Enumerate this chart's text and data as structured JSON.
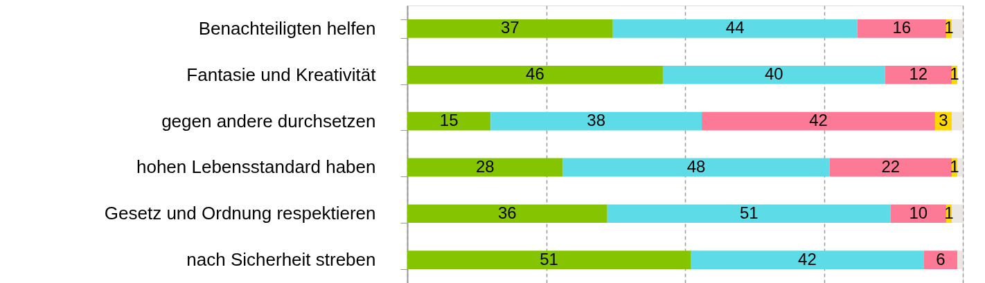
{
  "chart_data": {
    "type": "bar",
    "orientation": "horizontal",
    "stacked": true,
    "categories": [
      "Benachteiligten helfen",
      "Fantasie und Kreativität",
      "gegen andere durchsetzen",
      "hohen Lebensstandard haben",
      "Gesetz und Ordnung respektieren",
      "nach Sicherheit streben"
    ],
    "series": [
      {
        "color": "#84c400",
        "values": [
          37,
          46,
          15,
          28,
          36,
          51
        ],
        "value_labels": [
          "37",
          "46",
          "15",
          "28",
          "36",
          "51"
        ]
      },
      {
        "color": "#5ddbe6",
        "values": [
          44,
          40,
          38,
          48,
          51,
          42
        ],
        "value_labels": [
          "44",
          "40",
          "38",
          "48",
          "51",
          "42"
        ]
      },
      {
        "color": "#fc7a96",
        "values": [
          16,
          12,
          42,
          22,
          10,
          6
        ],
        "value_labels": [
          "16",
          "12",
          "42",
          "22",
          "10",
          "6"
        ]
      },
      {
        "color": "#ffd700",
        "values": [
          1,
          1,
          3,
          1,
          1,
          null
        ],
        "value_labels": [
          "1",
          "1",
          "3",
          "1",
          "1",
          null
        ]
      },
      {
        "color": "#ebe8e3",
        "values": [
          2,
          null,
          2,
          1,
          2,
          1
        ],
        "value_labels": [
          null,
          null,
          null,
          null,
          null,
          null
        ]
      }
    ],
    "xlim": [
      0,
      100
    ],
    "xticks": [
      {
        "value": 0,
        "label": null
      },
      {
        "value": 25,
        "label": null
      },
      {
        "value": 50,
        "label": null
      },
      {
        "value": 75,
        "label": null
      },
      {
        "value": 100,
        "label": null
      }
    ],
    "grid": "x",
    "tick_labels": "y",
    "legend": false
  }
}
